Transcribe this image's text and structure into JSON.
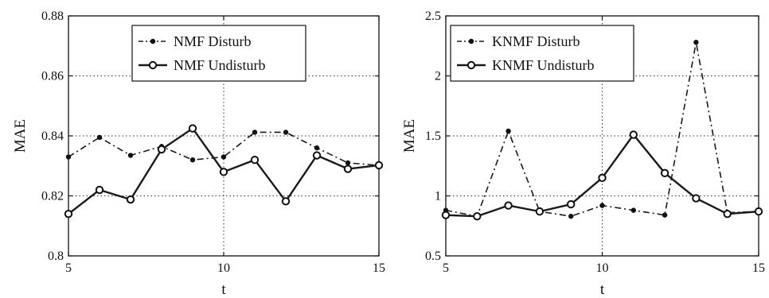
{
  "chart_data": [
    {
      "type": "line",
      "xlabel": "t",
      "ylabel": "MAE",
      "xlim": [
        5,
        15
      ],
      "ylim": [
        0.8,
        0.88
      ],
      "xticks": [
        "5",
        "10",
        "15"
      ],
      "yticks": [
        "0.8",
        "0.82",
        "0.84",
        "0.86",
        "0.88"
      ],
      "grid": "dotted at x=10 and every y tick",
      "legend_position": "top",
      "x": [
        5,
        6,
        7,
        8,
        9,
        10,
        11,
        12,
        13,
        14,
        15
      ],
      "series": [
        {
          "name": "NMF Disturb",
          "style": "dash-dot, filled dot markers",
          "values": [
            0.833,
            0.8395,
            0.8335,
            0.8365,
            0.832,
            0.833,
            0.8412,
            0.8412,
            0.836,
            0.831,
            0.8302
          ]
        },
        {
          "name": "NMF Undisturb",
          "style": "solid, open circle markers",
          "values": [
            0.814,
            0.822,
            0.8188,
            0.8355,
            0.8425,
            0.828,
            0.832,
            0.8182,
            0.8335,
            0.829,
            0.8302
          ]
        }
      ]
    },
    {
      "type": "line",
      "xlabel": "t",
      "ylabel": "MAE",
      "xlim": [
        5,
        15
      ],
      "ylim": [
        0.5,
        2.5
      ],
      "xticks": [
        "5",
        "10",
        "15"
      ],
      "yticks": [
        "0.5",
        "1",
        "1.5",
        "2",
        "2.5"
      ],
      "grid": "dotted at x=10 and every y tick",
      "legend_position": "top",
      "x": [
        5,
        6,
        7,
        8,
        9,
        10,
        11,
        12,
        13,
        14,
        15
      ],
      "series": [
        {
          "name": "KNMF Disturb",
          "style": "dash-dot, filled dot markers",
          "values": [
            0.88,
            0.83,
            1.54,
            0.87,
            0.83,
            0.92,
            0.88,
            0.84,
            2.28,
            0.86,
            0.87
          ]
        },
        {
          "name": "KNMF Undisturb",
          "style": "solid, open circle markers",
          "values": [
            0.84,
            0.83,
            0.92,
            0.87,
            0.93,
            1.15,
            1.51,
            1.19,
            0.98,
            0.85,
            0.87
          ]
        }
      ]
    }
  ]
}
